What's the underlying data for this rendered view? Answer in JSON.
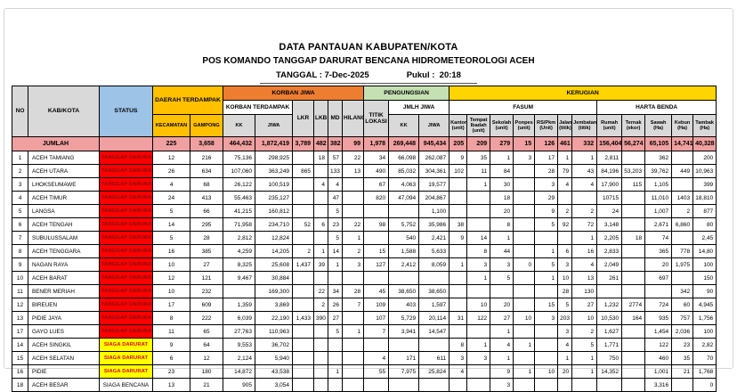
{
  "page": {
    "title1": "DATA PANTAUAN KABUPATEN/KOTA",
    "title2": "POS KOMANDO TANGGAP DARURAT BENCANA HIDROMETEOROLOGI ACEH",
    "date_label": "TANGGAL :",
    "date_value": "7-Dec-2025",
    "time_label": "Pukul :",
    "time_value": "20:18"
  },
  "colors": {
    "status_header": "#9dc3e6",
    "daerah_terdampak_band": "#ffc000",
    "korban_jiwa_band": "#ed7d31",
    "pengungsian_band": "#c5e0b3",
    "kerugian_band": "#ffd500",
    "subheader_gray": "#d9d9d9",
    "jumlah_row": "#f0a0a0",
    "status_tanggap_bg": "#ff0000",
    "status_siaga_bg": "#ffff00"
  },
  "table": {
    "headers": {
      "no": "NO",
      "kab_kota": "KAB/KOTA",
      "status": "STATUS",
      "daerah_terdampak": "DAERAH TERDAMPAK",
      "kecamatan": "KECAMATAN",
      "gampong": "GAMPONG",
      "korban_jiwa": "KORBAN JIWA",
      "korban_terdampak": "KORBAN TERDAMPAK",
      "kk": "KK",
      "jiwa": "JIWA",
      "lkr": "LKR",
      "lkb": "LKB",
      "md": "MD",
      "hilang": "HILANG",
      "pengungsian": "PENGUNGSIAN",
      "titik_lokasi": "TITIK LOKASI",
      "jmlh_jiwa": "JMLH JIWA",
      "kerugian": "KERUGIAN",
      "fasum": "FASUM",
      "kantor": "Kantor (unit)",
      "tempat_ibadah": "Tempat Ibadah (unit)",
      "sekolah": "Sekolah (unit)",
      "ponpes": "Ponpes (unit)",
      "rs_pkm": "RS/Pkm (Unit)",
      "jalan": "Jalan (titik)",
      "jembatan": "Jembatan (titik)",
      "harta_benda": "HARTA BENDA",
      "rumah": "Rumah (unit)",
      "ternak": "Ternak (ekor)",
      "sawah": "Sawah (Ha)",
      "kebun": "Kebun (Ha)",
      "tambak": "Tambak (Ha)"
    },
    "jumlah": {
      "label": "JUMLAH",
      "values": [
        "225",
        "3,658",
        "464,432",
        "1,872,419",
        "3,789",
        "482",
        "382",
        "99",
        "1,978",
        "269,448",
        "945,434",
        "205",
        "209",
        "279",
        "15",
        "126",
        "461",
        "332",
        "156,404",
        "56,274",
        "65,105",
        "14,741",
        "40,328"
      ]
    },
    "rows": [
      {
        "no": "1",
        "name": "ACEH TAMIANG",
        "status": "TANGGAP DARURAT",
        "status_type": "tanggap",
        "values": [
          "12",
          "216",
          "75,136",
          "298,925",
          "",
          "18",
          "57",
          "22",
          "34",
          "66,098",
          "262,087",
          "9",
          "35",
          "1",
          "3",
          "17",
          "1",
          "1",
          "2,811",
          "",
          "362",
          "",
          "200"
        ]
      },
      {
        "no": "2",
        "name": "ACEH UTARA",
        "status": "TANGGAP DARURAT",
        "status_type": "tanggap",
        "values": [
          "26",
          "634",
          "107,060",
          "363,249",
          "865",
          "",
          "133",
          "13",
          "490",
          "85,032",
          "304,361",
          "102",
          "11",
          "84",
          "",
          "28",
          "79",
          "43",
          "84,196",
          "53,203",
          "39,762",
          "449",
          "10,963"
        ]
      },
      {
        "no": "3",
        "name": "LHOKSEUMAWE",
        "status": "TANGGAP DARURAT",
        "status_type": "tanggap",
        "values": [
          "4",
          "68",
          "26,122",
          "100,519",
          "",
          "4",
          "4",
          "",
          "67",
          "4,063",
          "19,577",
          "",
          "1",
          "30",
          "",
          "3",
          "4",
          "4",
          "17,900",
          "115",
          "1,105",
          "",
          "399"
        ]
      },
      {
        "no": "4",
        "name": "ACEH TIMUR",
        "status": "TANGGAP DARURAT",
        "status_type": "tanggap",
        "values": [
          "24",
          "413",
          "55,463",
          "235,127",
          "",
          "",
          "47",
          "",
          "820",
          "47,094",
          "204,867",
          "",
          "",
          "18",
          "",
          "29",
          "",
          "",
          "10715",
          "",
          "11,010",
          "1403",
          "18,810"
        ]
      },
      {
        "no": "5",
        "name": "LANGSA",
        "status": "TANGGAP DARURAT",
        "status_type": "tanggap",
        "values": [
          "5",
          "66",
          "41,215",
          "160,812",
          "",
          "",
          "5",
          "",
          "",
          "",
          "1,100",
          "",
          "",
          "20",
          "",
          "9",
          "2",
          "2",
          "24",
          "",
          "1,007",
          "2",
          "877"
        ]
      },
      {
        "no": "6",
        "name": "ACEH TENGAH",
        "status": "TANGGAP DARURAT",
        "status_type": "tanggap",
        "values": [
          "14",
          "295",
          "71,958",
          "234,710",
          "52",
          "6",
          "23",
          "22",
          "98",
          "5,752",
          "35,986",
          "38",
          "",
          "8",
          "",
          "5",
          "92",
          "72",
          "3,148",
          "",
          "2,671",
          "6,860",
          "80"
        ]
      },
      {
        "no": "7",
        "name": "SUBULUSSALAM",
        "status": "TANGGAP DARURAT",
        "status_type": "tanggap",
        "values": [
          "5",
          "28",
          "2,812",
          "12,824",
          "",
          "",
          "5",
          "1",
          "",
          "540",
          "2,421",
          "9",
          "14",
          "1",
          "",
          "",
          "",
          "1",
          "2,205",
          "18",
          "74",
          "",
          "2,45"
        ]
      },
      {
        "no": "8",
        "name": "ACEH TENGGARA",
        "status": "TANGGAP DARURAT",
        "status_type": "tanggap",
        "values": [
          "16",
          "385",
          "4,259",
          "14,205",
          "2",
          "1",
          "14",
          "2",
          "15",
          "1,588",
          "5,633",
          "",
          "8",
          "44",
          "",
          "1",
          "6",
          "16",
          "2,833",
          "",
          "365",
          "778",
          "14,80"
        ]
      },
      {
        "no": "9",
        "name": "NAGAN RAYA",
        "status": "TANGGAP DARURAT",
        "status_type": "tanggap",
        "values": [
          "10",
          "27",
          "8,325",
          "25,608",
          "1,437",
          "39",
          "1",
          "3",
          "127",
          "2,412",
          "8,059",
          "1",
          "3",
          "3",
          "0",
          "5",
          "3",
          "4",
          "2,049",
          "",
          "20",
          "1,975",
          "100"
        ]
      },
      {
        "no": "10",
        "name": "ACEH BARAT",
        "status": "TANGGAP DARURAT",
        "status_type": "tanggap",
        "values": [
          "12",
          "121",
          "9,467",
          "30,884",
          "",
          "",
          "",
          "",
          "",
          "",
          "",
          "",
          "1",
          "5",
          "",
          "1",
          "10",
          "13",
          "261",
          "",
          "697",
          "",
          "150"
        ]
      },
      {
        "no": "11",
        "name": "BENER MERIAH",
        "status": "TANGGAP DARURAT",
        "status_type": "tanggap",
        "values": [
          "10",
          "232",
          "",
          "169,300",
          "",
          "22",
          "34",
          "28",
          "45",
          "38,650",
          "38,650",
          "",
          "",
          "",
          "",
          "",
          "28",
          "130",
          "",
          "",
          "",
          "342",
          "90"
        ]
      },
      {
        "no": "12",
        "name": "BIREUEN",
        "status": "TANGGAP DARURAT",
        "status_type": "tanggap",
        "values": [
          "17",
          "609",
          "1,359",
          "3,869",
          "",
          "2",
          "26",
          "7",
          "109",
          "403",
          "1,597",
          "",
          "10",
          "20",
          "",
          "15",
          "5",
          "27",
          "1,232",
          "2774",
          "724",
          "60",
          "4,945"
        ]
      },
      {
        "no": "13",
        "name": "PIDIE JAYA",
        "status": "TANGGAP DARURAT",
        "status_type": "tanggap",
        "values": [
          "8",
          "222",
          "6,039",
          "22,190",
          "1,433",
          "390",
          "27",
          "",
          "107",
          "5,729",
          "20,114",
          "31",
          "122",
          "27",
          "10",
          "3",
          "203",
          "10",
          "10,530",
          "164",
          "935",
          "757",
          "1,756"
        ]
      },
      {
        "no": "17",
        "name": "GAYO LUES",
        "status": "TANGGAP DARURAT",
        "status_type": "tanggap",
        "values": [
          "11",
          "65",
          "27,763",
          "110,963",
          "",
          "",
          "5",
          "1",
          "7",
          "3,941",
          "14,547",
          "",
          "",
          "1",
          "",
          "",
          "3",
          "2",
          "1,627",
          "",
          "1,454",
          "2,036",
          "100"
        ]
      },
      {
        "no": "14",
        "name": "ACEH SINGKIL",
        "status": "SIAGA DARURAT",
        "status_type": "siaga",
        "values": [
          "9",
          "64",
          "9,553",
          "36,702",
          "",
          "",
          "",
          "",
          "",
          "",
          "",
          "8",
          "1",
          "4",
          "1",
          "",
          "4",
          "5",
          "1,771",
          "",
          "122",
          "23",
          "2,82"
        ]
      },
      {
        "no": "15",
        "name": "ACEH SELATAN",
        "status": "SIAGA DARURAT",
        "status_type": "siaga",
        "values": [
          "6",
          "12",
          "2,124",
          "5,940",
          "",
          "",
          "",
          "",
          "4",
          "171",
          "611",
          "3",
          "3",
          "1",
          "",
          "",
          "1",
          "1",
          "750",
          "",
          "460",
          "35",
          "70"
        ]
      },
      {
        "no": "16",
        "name": "PIDIE",
        "status": "SIAGA DARURAT",
        "status_type": "siaga",
        "values": [
          "23",
          "180",
          "14,872",
          "43,538",
          "",
          "",
          "1",
          "",
          "55",
          "7,975",
          "25,824",
          "4",
          "",
          "9",
          "1",
          "10",
          "20",
          "1",
          "14,352",
          "",
          "1,001",
          "21",
          "1,768"
        ]
      },
      {
        "no": "18",
        "name": "ACEH BESAR",
        "status": "SIAGA BENCANA",
        "status_type": "bencana",
        "values": [
          "13",
          "21",
          "905",
          "3,054",
          "",
          "",
          "",
          "",
          "",
          "",
          "",
          "",
          "",
          "3",
          "",
          "",
          "",
          "",
          "",
          "",
          "3,316",
          "",
          "0"
        ]
      }
    ]
  }
}
